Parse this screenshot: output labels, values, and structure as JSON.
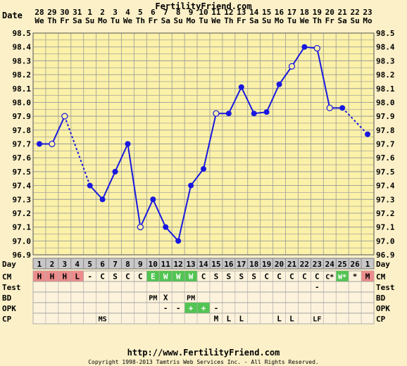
{
  "header": {
    "title": "FertilityFriend.com"
  },
  "footer": {
    "url": "http://www.FertilityFriend.com",
    "copyright": "Copyright 1998-2013 Tamtris Web Services Inc. - All Rights Reserved."
  },
  "chart_data": {
    "type": "line",
    "title": "FertilityFriend.com",
    "date_label": "Date",
    "day_label": "Day",
    "dates": [
      "28",
      "29",
      "30",
      "31",
      "1",
      "2",
      "3",
      "4",
      "5",
      "6",
      "7",
      "8",
      "9",
      "10",
      "11",
      "12",
      "13",
      "14",
      "15",
      "16",
      "17",
      "18",
      "19",
      "20",
      "21",
      "22",
      "23"
    ],
    "weekdays": [
      "We",
      "Th",
      "Fr",
      "Sa",
      "Su",
      "Mo",
      "Tu",
      "We",
      "Th",
      "Fr",
      "Sa",
      "Su",
      "Mo",
      "Tu",
      "We",
      "Th",
      "Fr",
      "Sa",
      "Su",
      "Mo",
      "Tu",
      "We",
      "Th",
      "Fr",
      "Sa",
      "Su",
      "Mo"
    ],
    "cycle_days": [
      "1",
      "2",
      "3",
      "4",
      "5",
      "6",
      "7",
      "8",
      "9",
      "10",
      "11",
      "12",
      "13",
      "14",
      "15",
      "16",
      "17",
      "18",
      "19",
      "20",
      "21",
      "22",
      "23",
      "24",
      "25",
      "26",
      "1"
    ],
    "ylim": [
      96.9,
      98.5
    ],
    "yticks": [
      "96.9",
      "97.0",
      "97.1",
      "97.2",
      "97.3",
      "97.4",
      "97.5",
      "97.6",
      "97.7",
      "97.8",
      "97.9",
      "98.0",
      "98.1",
      "98.2",
      "98.3",
      "98.4",
      "98.5"
    ],
    "temps": [
      97.7,
      97.7,
      97.9,
      null,
      97.4,
      97.3,
      97.5,
      97.7,
      97.1,
      97.3,
      97.1,
      97.0,
      97.4,
      97.52,
      97.92,
      97.92,
      98.11,
      97.92,
      97.93,
      98.13,
      98.26,
      98.4,
      98.39,
      97.96,
      97.96,
      null,
      97.77
    ],
    "open_points": [
      1,
      2,
      3,
      8,
      14,
      20,
      22,
      23,
      25
    ],
    "dashed_connections": [
      [
        2,
        4
      ],
      [
        24,
        26
      ]
    ],
    "grid": true,
    "line_color": "#1818e0",
    "rows": [
      {
        "label": "CM",
        "cells": [
          "H",
          "H",
          "H",
          "L",
          "-",
          "C",
          "S",
          "C",
          "C",
          "E",
          "W",
          "W",
          "W",
          "C",
          "S",
          "S",
          "S",
          "S",
          "C",
          "C",
          "C",
          "C",
          "C",
          "C*",
          "W*",
          "*",
          "M"
        ],
        "colors": [
          "#ec8c8c",
          "#ec8c8c",
          "#ec8c8c",
          "#ec8c8c",
          "",
          "",
          "",
          "",
          "",
          "#52c452",
          "#52c452",
          "#52c452",
          "#52c452",
          "",
          "",
          "",
          "",
          "",
          "",
          "",
          "",
          "",
          "",
          "",
          "#52c452",
          "",
          "#ec8c8c"
        ]
      },
      {
        "label": "Test",
        "cells": [
          "",
          "",
          "",
          "",
          "",
          "",
          "",
          "",
          "",
          "",
          "",
          "",
          "",
          "",
          "",
          "",
          "",
          "",
          "",
          "",
          "",
          "",
          "-",
          "",
          "",
          "",
          ""
        ]
      },
      {
        "label": "BD",
        "cells": [
          "",
          "",
          "",
          "",
          "",
          "",
          "",
          "",
          "",
          "PM",
          "X",
          "",
          "PM",
          "",
          "",
          "",
          "",
          "",
          "",
          "",
          "",
          "",
          "",
          "",
          "",
          "",
          ""
        ]
      },
      {
        "label": "OPK",
        "cells": [
          "",
          "",
          "",
          "",
          "",
          "",
          "",
          "",
          "",
          "",
          "-",
          "-",
          "+",
          "+",
          "-",
          "",
          "",
          "",
          "",
          "",
          "",
          "",
          "",
          "",
          "",
          "",
          ""
        ],
        "colors": [
          "",
          "",
          "",
          "",
          "",
          "",
          "",
          "",
          "",
          "",
          "",
          "",
          "#52c452",
          "#52c452",
          "",
          "",
          "",
          "",
          "",
          "",
          "",
          "",
          "",
          "",
          "",
          "",
          ""
        ]
      },
      {
        "label": "CP",
        "cells": [
          "",
          "",
          "",
          "",
          "",
          "MS",
          "",
          "",
          "",
          "",
          "",
          "",
          "",
          "",
          "M",
          "L",
          "L",
          "",
          "",
          "L",
          "L",
          "",
          "LF",
          "",
          "",
          "",
          ""
        ]
      }
    ]
  }
}
